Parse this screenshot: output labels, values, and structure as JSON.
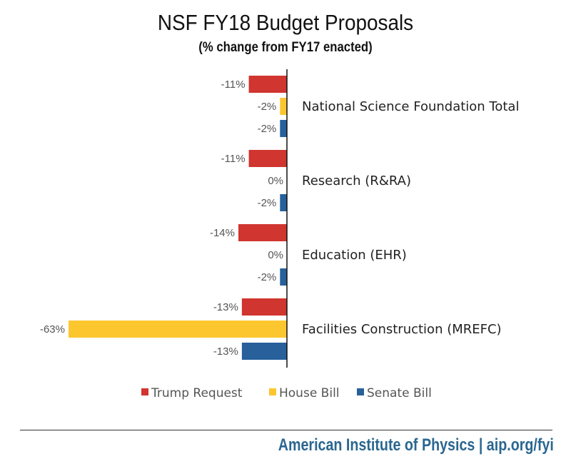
{
  "chart_data": {
    "type": "bar",
    "orientation": "horizontal",
    "title": "NSF FY18 Budget Proposals",
    "subtitle": "(% change from FY17 enacted)",
    "categories": [
      "National Science Foundation Total",
      "Research (R&RA)",
      "Education (EHR)",
      "Facilities Construction (MREFC)"
    ],
    "series": [
      {
        "name": "Trump Request",
        "color": "#d0352f",
        "values": [
          -11,
          -11,
          -14,
          -13
        ],
        "labels": [
          "-11%",
          "-11%",
          "-14%",
          "-13%"
        ]
      },
      {
        "name": "House Bill",
        "color": "#fcc62f",
        "values": [
          -2,
          0,
          0,
          -63
        ],
        "labels": [
          "-2%",
          "0%",
          "0%",
          "-63%"
        ]
      },
      {
        "name": "Senate Bill",
        "color": "#27609a",
        "values": [
          -2,
          -2,
          -2,
          -13
        ],
        "labels": [
          "-2%",
          "-2%",
          "-2%",
          "-13%"
        ]
      }
    ],
    "xlim": [
      -63,
      0
    ],
    "grid": false,
    "legend": "bottom"
  },
  "footer": "American Institute of Physics | aip.org/fyi"
}
